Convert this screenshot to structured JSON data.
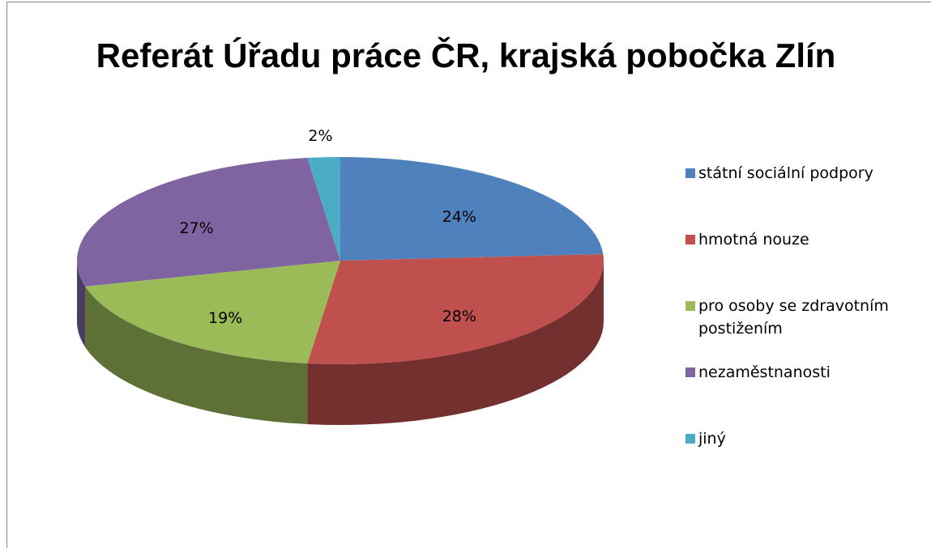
{
  "chart_data": {
    "type": "pie",
    "title": "Referát Úřadu práce ČR, krajská pobočka Zlín",
    "categories": [
      "státní sociální podpory",
      "hmotná nouze",
      "pro osoby se zdravotním postižením",
      "nezaměstnanosti",
      "jiný"
    ],
    "values": [
      24,
      28,
      19,
      27,
      2
    ],
    "value_labels": [
      "24%",
      "28%",
      "19%",
      "27%",
      "2%"
    ],
    "colors": [
      "#4f81bd",
      "#c0504d",
      "#9bbb59",
      "#8064a2",
      "#4bacc6"
    ],
    "legend": "right"
  }
}
